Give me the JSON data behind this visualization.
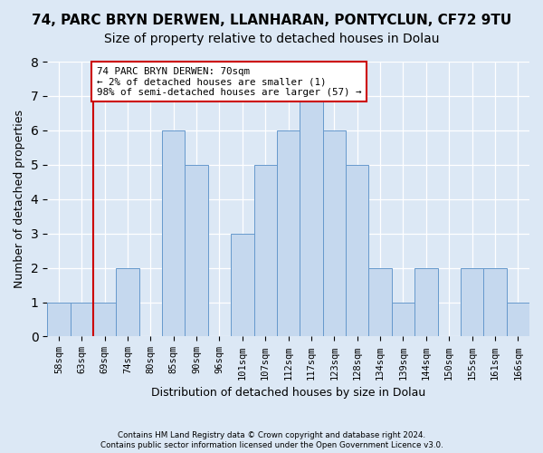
{
  "title": "74, PARC BRYN DERWEN, LLANHARAN, PONTYCLUN, CF72 9TU",
  "subtitle": "Size of property relative to detached houses in Dolau",
  "xlabel": "Distribution of detached houses by size in Dolau",
  "ylabel": "Number of detached properties",
  "bar_labels": [
    "58sqm",
    "63sqm",
    "69sqm",
    "74sqm",
    "80sqm",
    "85sqm",
    "90sqm",
    "96sqm",
    "101sqm",
    "107sqm",
    "112sqm",
    "117sqm",
    "123sqm",
    "128sqm",
    "134sqm",
    "139sqm",
    "144sqm",
    "150sqm",
    "155sqm",
    "161sqm",
    "166sqm"
  ],
  "bar_values": [
    1,
    1,
    1,
    2,
    0,
    6,
    5,
    0,
    3,
    5,
    6,
    7,
    6,
    5,
    2,
    1,
    2,
    0,
    2,
    2,
    1
  ],
  "bar_color": "#c5d8ee",
  "bar_edge_color": "#6699cc",
  "redline_x": 1.5,
  "redline_color": "#cc0000",
  "annotation_text": "74 PARC BRYN DERWEN: 70sqm\n← 2% of detached houses are smaller (1)\n98% of semi-detached houses are larger (57) →",
  "annotation_box_facecolor": "#ffffff",
  "annotation_box_edgecolor": "#cc0000",
  "background_color": "#dce8f5",
  "grid_color": "#ffffff",
  "footer_line1": "Contains HM Land Registry data © Crown copyright and database right 2024.",
  "footer_line2": "Contains public sector information licensed under the Open Government Licence v3.0.",
  "ylim_max": 8,
  "title_fontsize": 11,
  "subtitle_fontsize": 10
}
